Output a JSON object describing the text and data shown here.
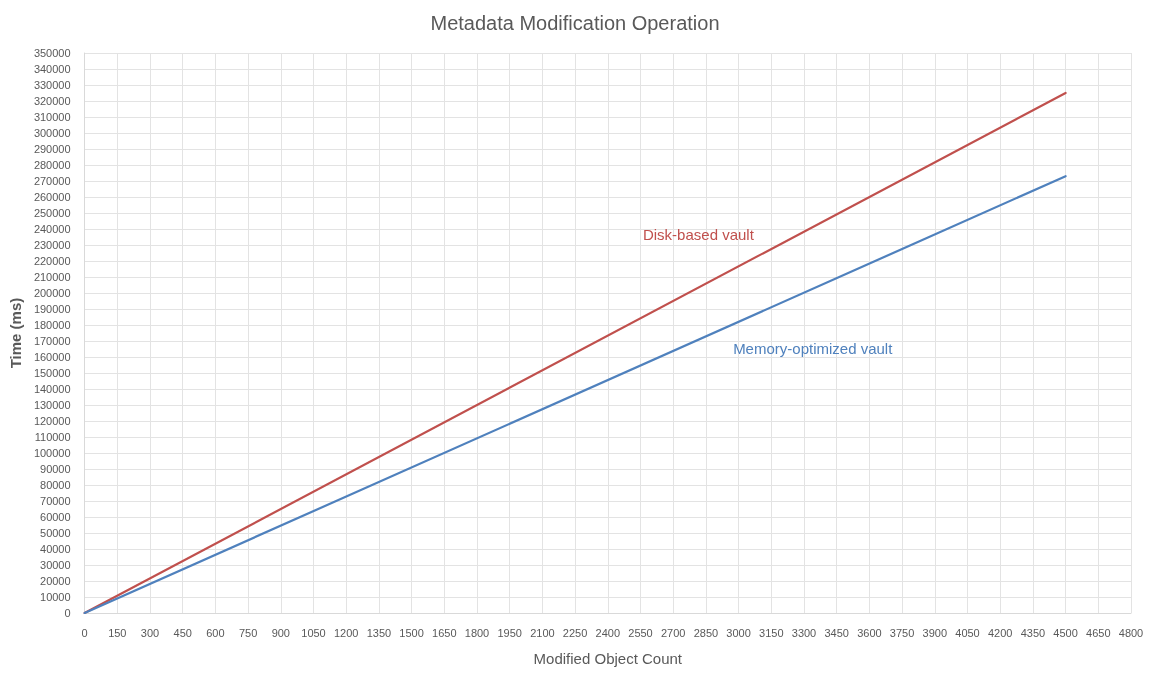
{
  "chart_data": {
    "type": "line",
    "title": "Metadata Modification Operation",
    "xlabel": "Modified Object Count",
    "ylabel": "Time (ms)",
    "x": [
      0,
      4500
    ],
    "series": [
      {
        "name": "Disk-based vault",
        "color": "#c0504d",
        "values": [
          0,
          325000
        ]
      },
      {
        "name": "Memory-optimized vault",
        "color": "#4f81bd",
        "values": [
          0,
          273000
        ]
      }
    ],
    "xlim": [
      0,
      4800
    ],
    "xticks": [
      0,
      150,
      300,
      450,
      600,
      750,
      900,
      1050,
      1200,
      1350,
      1500,
      1650,
      1800,
      1950,
      2100,
      2250,
      2400,
      2550,
      2700,
      2850,
      3000,
      3150,
      3300,
      3450,
      3600,
      3750,
      3900,
      4050,
      4200,
      4350,
      4500,
      4650,
      4800
    ],
    "ylim": [
      0,
      350000
    ],
    "yticks": [
      0,
      10000,
      20000,
      30000,
      40000,
      50000,
      60000,
      70000,
      80000,
      90000,
      100000,
      110000,
      120000,
      130000,
      140000,
      150000,
      160000,
      170000,
      180000,
      190000,
      200000,
      210000,
      220000,
      230000,
      240000,
      250000,
      260000,
      270000,
      280000,
      290000,
      300000,
      310000,
      320000,
      330000,
      340000,
      350000
    ],
    "grid": true,
    "legend": false,
    "marker": "none",
    "line_style": "solid"
  }
}
